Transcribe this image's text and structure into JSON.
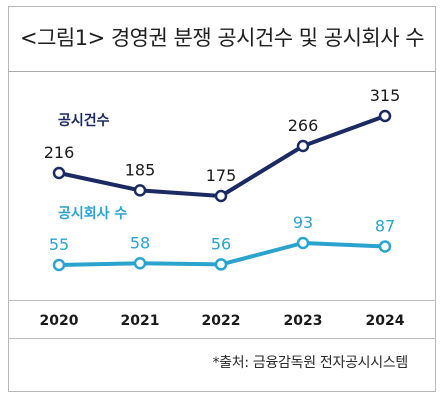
{
  "title": "<그림1> 경영권 분쟁 공시건수 및 공시회사 수",
  "source": "*출처: 금융감독원 전자공시시스템",
  "chart_data": {
    "type": "line",
    "x": [
      "2020",
      "2021",
      "2022",
      "2023",
      "2024"
    ],
    "series": [
      {
        "name": "공시건수",
        "values": [
          216,
          185,
          175,
          266,
          315
        ],
        "color": "#1b2a63"
      },
      {
        "name": "공시회사 수",
        "values": [
          55,
          58,
          56,
          93,
          87
        ],
        "color": "#2ba3cf"
      }
    ],
    "grid": false
  }
}
